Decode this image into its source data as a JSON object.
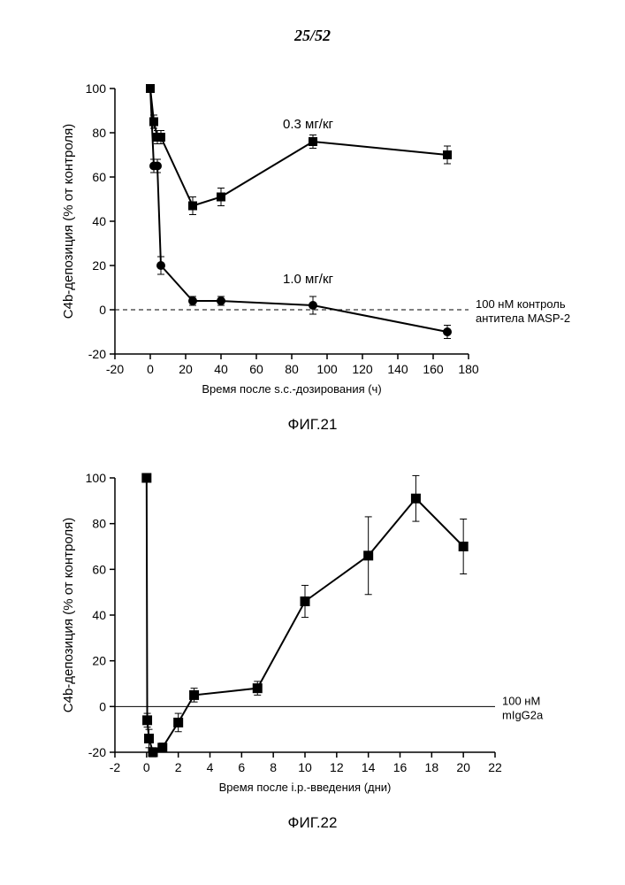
{
  "page_label": "25/52",
  "chart1": {
    "type": "line",
    "x_label": "Время после s.c.-дозирования (ч)",
    "y_label": "C4b-депозиция (% от контроля)",
    "fig_caption": "ФИГ.21",
    "xlim": [
      -20,
      180
    ],
    "ylim": [
      -20,
      100
    ],
    "xtick_step": 20,
    "ytick_step": 20,
    "axis_fontsize": 13,
    "label_fontsize": 15,
    "tick_fontsize": 14,
    "line_width": 2,
    "marker_size": 5,
    "series_03_label": "0.3 мг/кг",
    "series_10_label": "1.0 мг/кг",
    "ref_line_label_1": "100 нМ  контроль",
    "ref_line_label_2": "антитела MASP-2",
    "background_color": "#ffffff",
    "axis_color": "#000000",
    "line_color": "#000000",
    "series_03": {
      "marker": "square",
      "points": [
        {
          "x": 0,
          "y": 100,
          "err": 0
        },
        {
          "x": 2,
          "y": 85,
          "err": 3
        },
        {
          "x": 4,
          "y": 78,
          "err": 3
        },
        {
          "x": 6,
          "y": 78,
          "err": 3
        },
        {
          "x": 24,
          "y": 47,
          "err": 4
        },
        {
          "x": 40,
          "y": 51,
          "err": 4
        },
        {
          "x": 92,
          "y": 76,
          "err": 3
        },
        {
          "x": 168,
          "y": 70,
          "err": 4
        }
      ]
    },
    "series_10": {
      "marker": "circle",
      "points": [
        {
          "x": 0,
          "y": 100,
          "err": 0
        },
        {
          "x": 2,
          "y": 65,
          "err": 3
        },
        {
          "x": 4,
          "y": 65,
          "err": 3
        },
        {
          "x": 6,
          "y": 20,
          "err": 4
        },
        {
          "x": 24,
          "y": 4,
          "err": 2
        },
        {
          "x": 40,
          "y": 4,
          "err": 2
        },
        {
          "x": 92,
          "y": 2,
          "err": 4
        },
        {
          "x": 168,
          "y": -10,
          "err": 3
        }
      ]
    }
  },
  "chart2": {
    "type": "line",
    "x_label": "Время после i.p.-введения (дни)",
    "y_label": "C4b-депозиция (% от контроля)",
    "fig_caption": "ФИГ.22",
    "xlim": [
      -2,
      22
    ],
    "ylim": [
      -20,
      100
    ],
    "xtick_step": 2,
    "ytick_step": 20,
    "axis_fontsize": 13,
    "label_fontsize": 15,
    "tick_fontsize": 14,
    "line_width": 2,
    "marker_size": 5.5,
    "ref_line_label_1": "100 нМ",
    "ref_line_label_2": "mIgG2a",
    "background_color": "#ffffff",
    "axis_color": "#000000",
    "line_color": "#000000",
    "series": {
      "marker": "square",
      "points": [
        {
          "x": 0.0,
          "y": 100,
          "err": 0
        },
        {
          "x": 0.04,
          "y": -6,
          "err": 3
        },
        {
          "x": 0.15,
          "y": -14,
          "err": 4
        },
        {
          "x": 0.4,
          "y": -20,
          "err": 2
        },
        {
          "x": 1.0,
          "y": -18,
          "err": 2
        },
        {
          "x": 2.0,
          "y": -7,
          "err": 4
        },
        {
          "x": 3.0,
          "y": 5,
          "err": 3
        },
        {
          "x": 7.0,
          "y": 8,
          "err": 3
        },
        {
          "x": 10.0,
          "y": 46,
          "err": 7
        },
        {
          "x": 14.0,
          "y": 66,
          "err": 17
        },
        {
          "x": 17.0,
          "y": 91,
          "err": 10
        },
        {
          "x": 20.0,
          "y": 70,
          "err": 12
        }
      ]
    }
  }
}
